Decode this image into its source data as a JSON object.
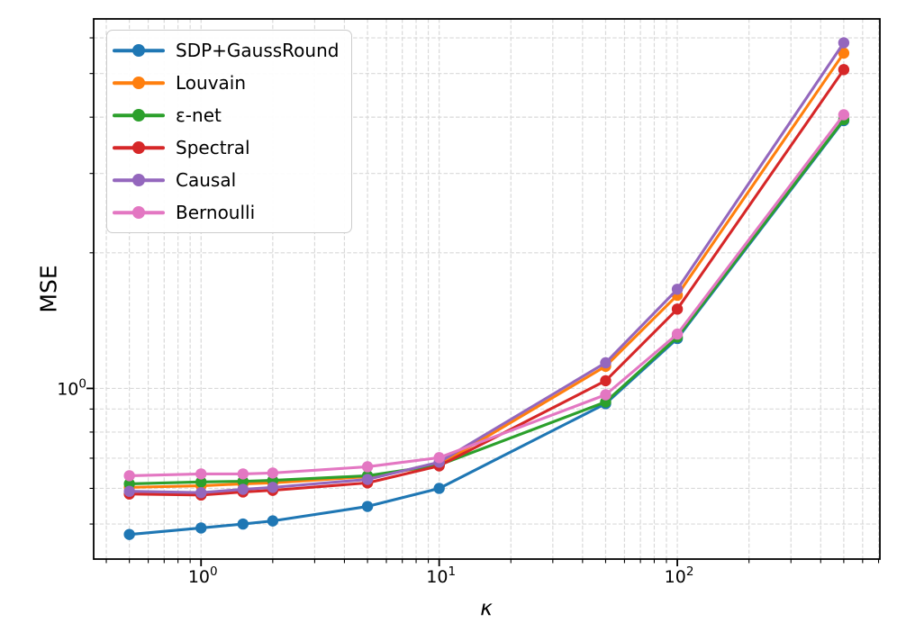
{
  "chart_data": {
    "type": "line",
    "title": "",
    "xlabel": "κ",
    "ylabel": "MSE",
    "xscale": "log",
    "yscale": "log",
    "xlim": [
      0.354,
      709
    ],
    "ylim": [
      0.418,
      6.61
    ],
    "grid": {
      "which": "both",
      "style": "dashed",
      "color": "#d9d9d9"
    },
    "legend_position": "upper-left",
    "x": [
      0.5,
      1,
      1.5,
      2,
      5,
      10,
      50,
      100,
      500
    ],
    "series": [
      {
        "name": "SDP+GaussRound",
        "color": "#1f77b4",
        "values": [
          0.474,
          0.49,
          0.5,
          0.508,
          0.547,
          0.6,
          0.925,
          1.29,
          3.93
        ]
      },
      {
        "name": "Louvain",
        "color": "#ff7f0e",
        "values": [
          0.603,
          0.608,
          0.614,
          0.617,
          0.637,
          0.676,
          1.12,
          1.61,
          5.55
        ]
      },
      {
        "name": "ε-net",
        "color": "#2ca02c",
        "values": [
          0.614,
          0.62,
          0.622,
          0.625,
          0.64,
          0.676,
          0.933,
          1.3,
          3.95
        ]
      },
      {
        "name": "Spectral",
        "color": "#d62728",
        "values": [
          0.583,
          0.58,
          0.589,
          0.594,
          0.617,
          0.673,
          1.04,
          1.5,
          5.1
        ]
      },
      {
        "name": "Causal",
        "color": "#9467bd",
        "values": [
          0.591,
          0.587,
          0.597,
          0.603,
          0.628,
          0.686,
          1.14,
          1.66,
          5.85
        ]
      },
      {
        "name": "Bernoulli",
        "color": "#e377c2",
        "values": [
          0.64,
          0.646,
          0.646,
          0.649,
          0.67,
          0.702,
          0.968,
          1.32,
          4.05
        ]
      }
    ],
    "x_tick_labels": [
      {
        "value": 1,
        "base": "10",
        "exp": "0"
      },
      {
        "value": 10,
        "base": "10",
        "exp": "1"
      },
      {
        "value": 100,
        "base": "10",
        "exp": "2"
      }
    ],
    "y_tick_labels": [
      {
        "value": 1,
        "base": "10",
        "exp": "0"
      }
    ]
  }
}
